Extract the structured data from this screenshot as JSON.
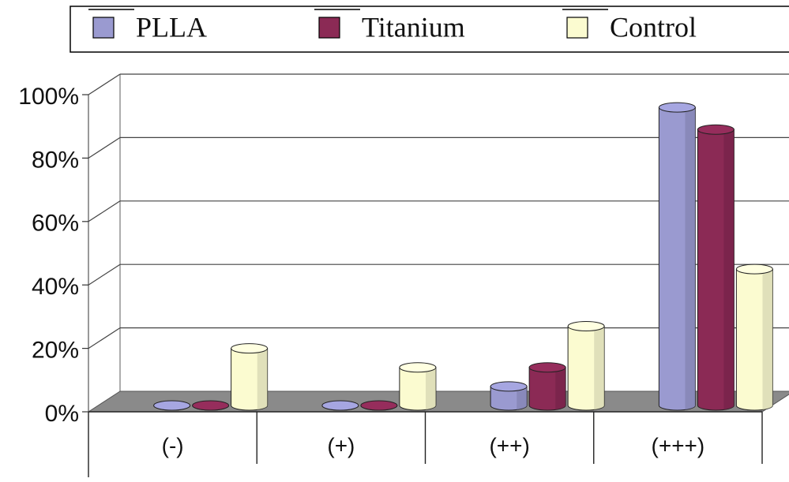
{
  "chart_data": {
    "type": "bar",
    "categories": [
      "(-)",
      "(+)",
      "(++)",
      "(+++)"
    ],
    "series": [
      {
        "name": "PLLA",
        "values": [
          0,
          0,
          6,
          94
        ]
      },
      {
        "name": "Titanium",
        "values": [
          0,
          0,
          12,
          87
        ]
      },
      {
        "name": "Control",
        "values": [
          18,
          12,
          25,
          43
        ]
      }
    ],
    "ylim": [
      0,
      100
    ],
    "yticks": [
      "0%",
      "20%",
      "40%",
      "60%",
      "80%",
      "100%"
    ],
    "grid": true,
    "three_d": true,
    "legend": {
      "placement": "top"
    },
    "colors": {
      "PLLA": "#9a9ad0",
      "Titanium": "#8b2a55",
      "Control": "#fbfbd0",
      "floor": "#8a8a8a"
    }
  }
}
